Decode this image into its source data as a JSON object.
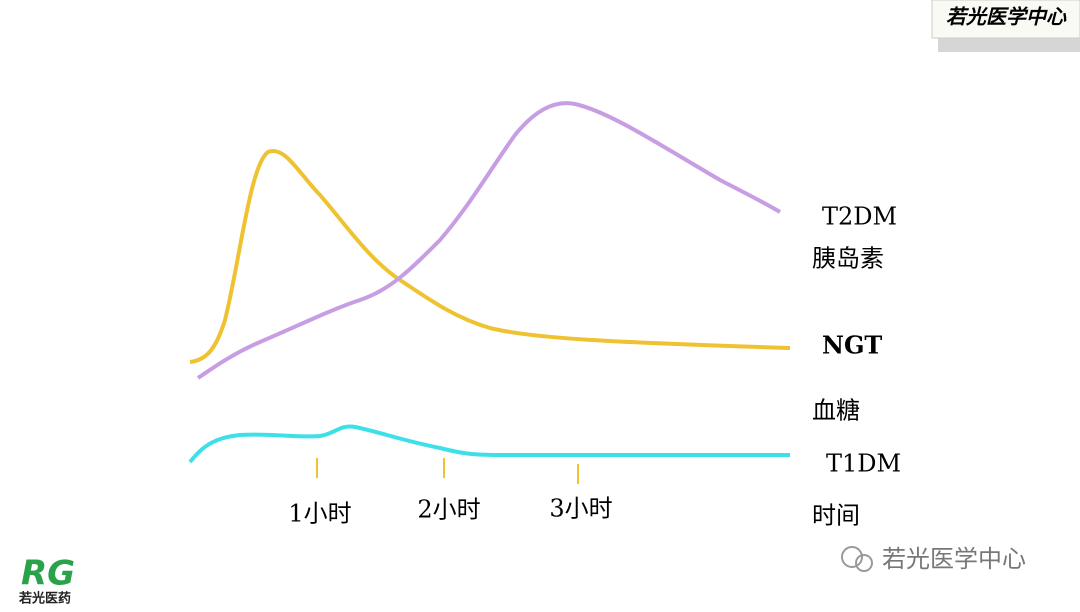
{
  "header": {
    "badge": "若光医学中心"
  },
  "curve_labels": {
    "t2dm": "T2DM",
    "insulin": "胰岛素",
    "ngt": "NGT",
    "glucose": "血糖",
    "t1dm": "T1DM"
  },
  "axis": {
    "label": "时间",
    "ticks": [
      "1小时",
      "2小时",
      "3小时"
    ]
  },
  "footer": {
    "watermark": "若光医学中心",
    "logo_text": "若光医药",
    "logo_mark": "RG"
  }
}
